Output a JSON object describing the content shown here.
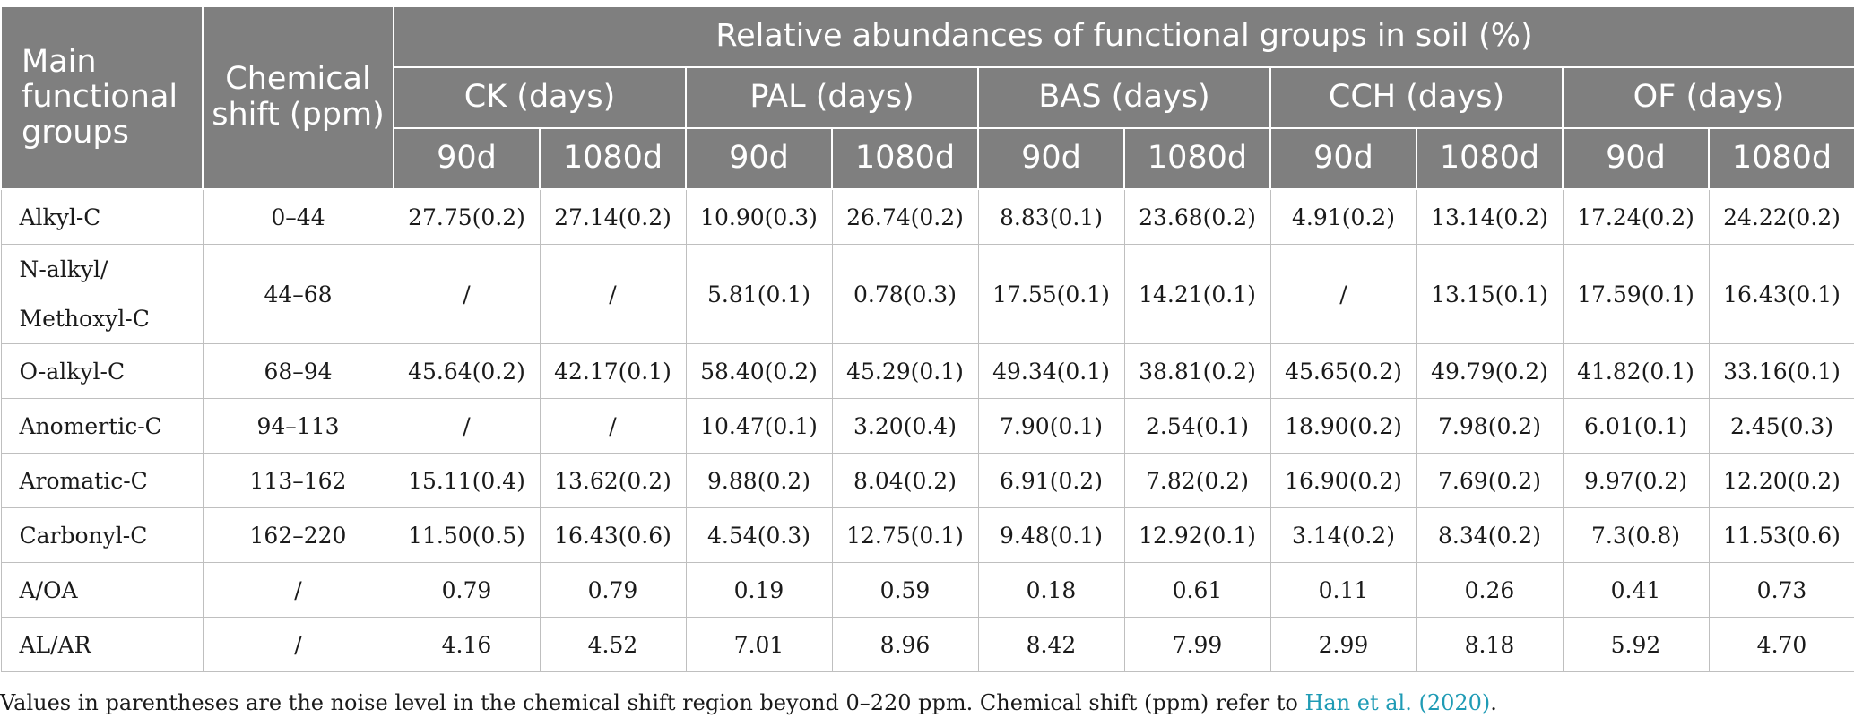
{
  "header": {
    "main_groups": "Main functional groups",
    "chemical_shift": "Chemical shift (ppm)",
    "relative_abundance": "Relative abundances of functional groups in soil (%)",
    "treatments": [
      "CK (days)",
      "PAL (days)",
      "BAS (days)",
      "CCH (days)",
      "OF (days)"
    ],
    "days": [
      "90d",
      "1080d",
      "90d",
      "1080d",
      "90d",
      "1080d",
      "90d",
      "1080d",
      "90d",
      "1080d"
    ]
  },
  "rows": [
    {
      "name": "Alkyl-C",
      "shift": "0–44",
      "values": [
        "27.75(0.2)",
        "27.14(0.2)",
        "10.90(0.3)",
        "26.74(0.2)",
        "8.83(0.1)",
        "23.68(0.2)",
        "4.91(0.2)",
        "13.14(0.2)",
        "17.24(0.2)",
        "24.22(0.2)"
      ]
    },
    {
      "name_line1": "N-alkyl/",
      "name_line2": "Methoxyl-C",
      "shift": "44–68",
      "values": [
        "/",
        "/",
        "5.81(0.1)",
        "0.78(0.3)",
        "17.55(0.1)",
        "14.21(0.1)",
        "/",
        "13.15(0.1)",
        "17.59(0.1)",
        "16.43(0.1)"
      ]
    },
    {
      "name": "O-alkyl-C",
      "shift": "68–94",
      "values": [
        "45.64(0.2)",
        "42.17(0.1)",
        "58.40(0.2)",
        "45.29(0.1)",
        "49.34(0.1)",
        "38.81(0.2)",
        "45.65(0.2)",
        "49.79(0.2)",
        "41.82(0.1)",
        "33.16(0.1)"
      ]
    },
    {
      "name": "Anomertic-C",
      "shift": "94–113",
      "values": [
        "/",
        "/",
        "10.47(0.1)",
        "3.20(0.4)",
        "7.90(0.1)",
        "2.54(0.1)",
        "18.90(0.2)",
        "7.98(0.2)",
        "6.01(0.1)",
        "2.45(0.3)"
      ]
    },
    {
      "name": "Aromatic-C",
      "shift": "113–162",
      "values": [
        "15.11(0.4)",
        "13.62(0.2)",
        "9.88(0.2)",
        "8.04(0.2)",
        "6.91(0.2)",
        "7.82(0.2)",
        "16.90(0.2)",
        "7.69(0.2)",
        "9.97(0.2)",
        "12.20(0.2)"
      ]
    },
    {
      "name": "Carbonyl-C",
      "shift": "162–220",
      "values": [
        "11.50(0.5)",
        "16.43(0.6)",
        "4.54(0.3)",
        "12.75(0.1)",
        "9.48(0.1)",
        "12.92(0.1)",
        "3.14(0.2)",
        "8.34(0.2)",
        "7.3(0.8)",
        "11.53(0.6)"
      ]
    },
    {
      "name": "A/OA",
      "shift": "/",
      "values": [
        "0.79",
        "0.79",
        "0.19",
        "0.59",
        "0.18",
        "0.61",
        "0.11",
        "0.26",
        "0.41",
        "0.73"
      ]
    },
    {
      "name": "AL/AR",
      "shift": "/",
      "values": [
        "4.16",
        "4.52",
        "7.01",
        "8.96",
        "8.42",
        "7.99",
        "2.99",
        "8.18",
        "5.92",
        "4.70"
      ]
    }
  ],
  "footnote": {
    "text": "Values in parentheses are the noise level in the chemical shift region beyond 0–220 ppm. Chemical shift (ppm) refer to ",
    "link": "Han et al. (2020)",
    "end": "."
  },
  "colors": {
    "header_bg": "#7f7f7f",
    "link": "#1f9bb5"
  }
}
